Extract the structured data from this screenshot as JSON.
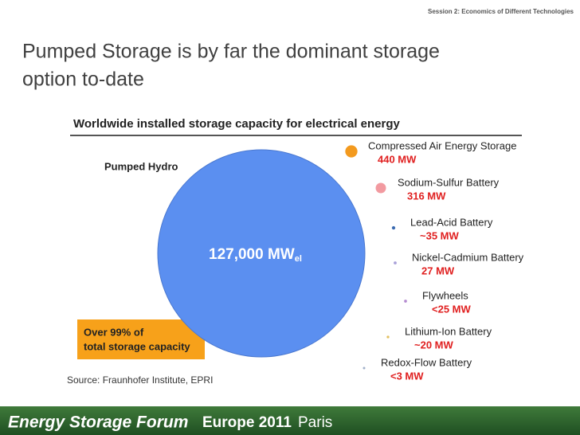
{
  "header": "Session 2: Economics of Different Technologies",
  "title_lines": [
    "Pumped Storage is by far the dominant storage",
    "option to-date"
  ],
  "chart_data": {
    "type": "bubble",
    "title": "Worldwide installed storage capacity for electrical energy",
    "categories": [
      "Pumped Hydro",
      "Compressed Air Energy Storage",
      "Sodium-Sulfur Battery",
      "Lead-Acid Battery",
      "Nickel-Cadmium Battery",
      "Flywheels",
      "Lithium-Ion Battery",
      "Redox-Flow Battery"
    ],
    "values": [
      127000,
      440,
      316,
      35,
      27,
      25,
      20,
      3
    ],
    "value_labels": [
      "127,000 MW",
      "440 MW",
      "316 MW",
      "~35 MW",
      "27 MW",
      "<25 MW",
      "~20 MW",
      "<3 MW"
    ],
    "value_label_subscript": "el",
    "colors": [
      "#5b8ff0",
      "#f39a1e",
      "#f29aa0",
      "#3a6ab0",
      "#a8a0d8",
      "#b48ad0",
      "#e3c060",
      "#a0b0c8"
    ],
    "annotation_lines": [
      "Over 99% of",
      "total storage capacity"
    ],
    "source": "Source: Fraunhofer Institute, EPRI"
  },
  "footer": {
    "brand": "Energy Storage Forum",
    "edition": "Europe 2011",
    "city": "Paris"
  }
}
